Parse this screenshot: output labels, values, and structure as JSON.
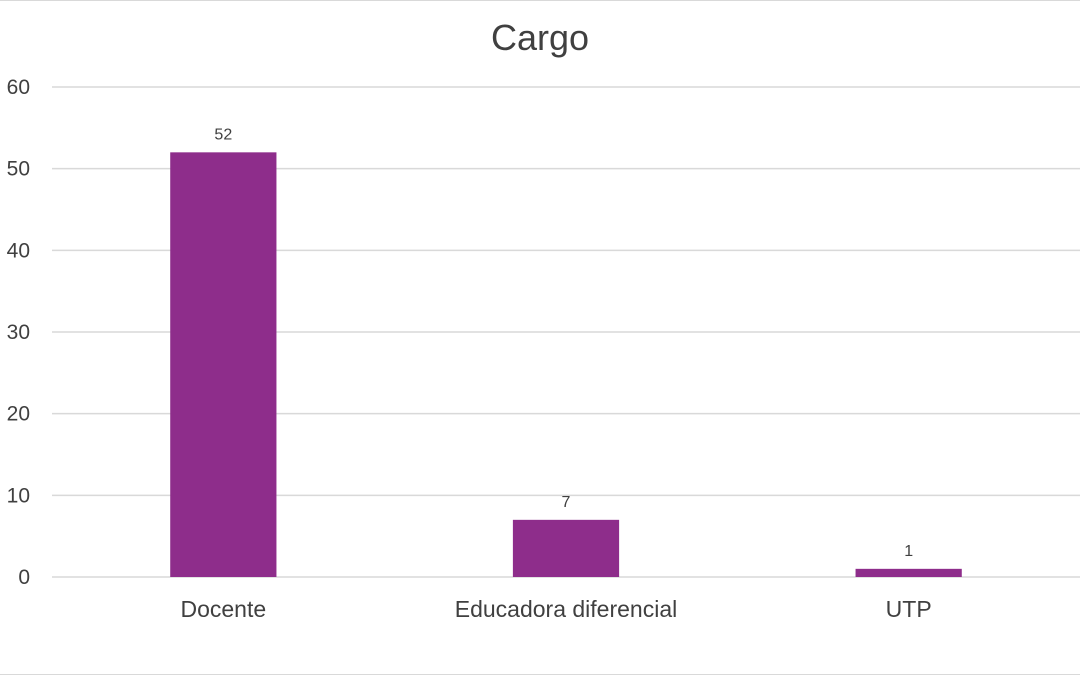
{
  "chart_data": {
    "type": "bar",
    "title": "Cargo",
    "categories": [
      "Docente",
      "Educadora diferencial",
      "UTP"
    ],
    "values": [
      52,
      7,
      1
    ],
    "data_labels": [
      "52",
      "7",
      "1"
    ],
    "ylim": [
      0,
      60
    ],
    "yticks": [
      0,
      10,
      20,
      30,
      40,
      50,
      60
    ],
    "ytick_labels": [
      "0",
      "10",
      "20",
      "30",
      "40",
      "50",
      "60"
    ],
    "xlabel": "",
    "ylabel": "",
    "grid": true,
    "legend": "none",
    "bar_color": "#8e2d8b",
    "grid_color": "#d9d9d9"
  }
}
